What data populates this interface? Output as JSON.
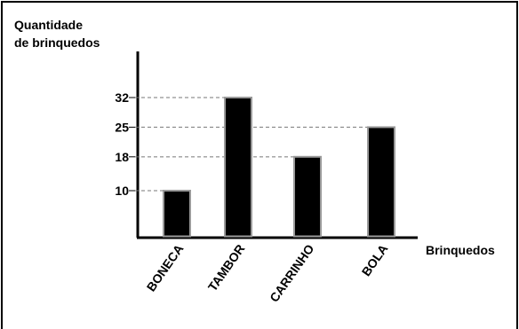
{
  "chart_data": {
    "type": "bar",
    "ylabel_line1": "Quantidade",
    "ylabel_line2": "de brinquedos",
    "xlabel": "Brinquedos",
    "categories": [
      "BONECA",
      "TAMBOR",
      "CARRINHO",
      "BOLA"
    ],
    "values": [
      10,
      32,
      18,
      25
    ],
    "yticks": [
      10,
      18,
      25,
      32
    ],
    "ylim": [
      0,
      32
    ],
    "grid": "dashed reference lines at tick values",
    "bar_color": "#000000",
    "bar_outline_color": "#9a9a9a"
  }
}
